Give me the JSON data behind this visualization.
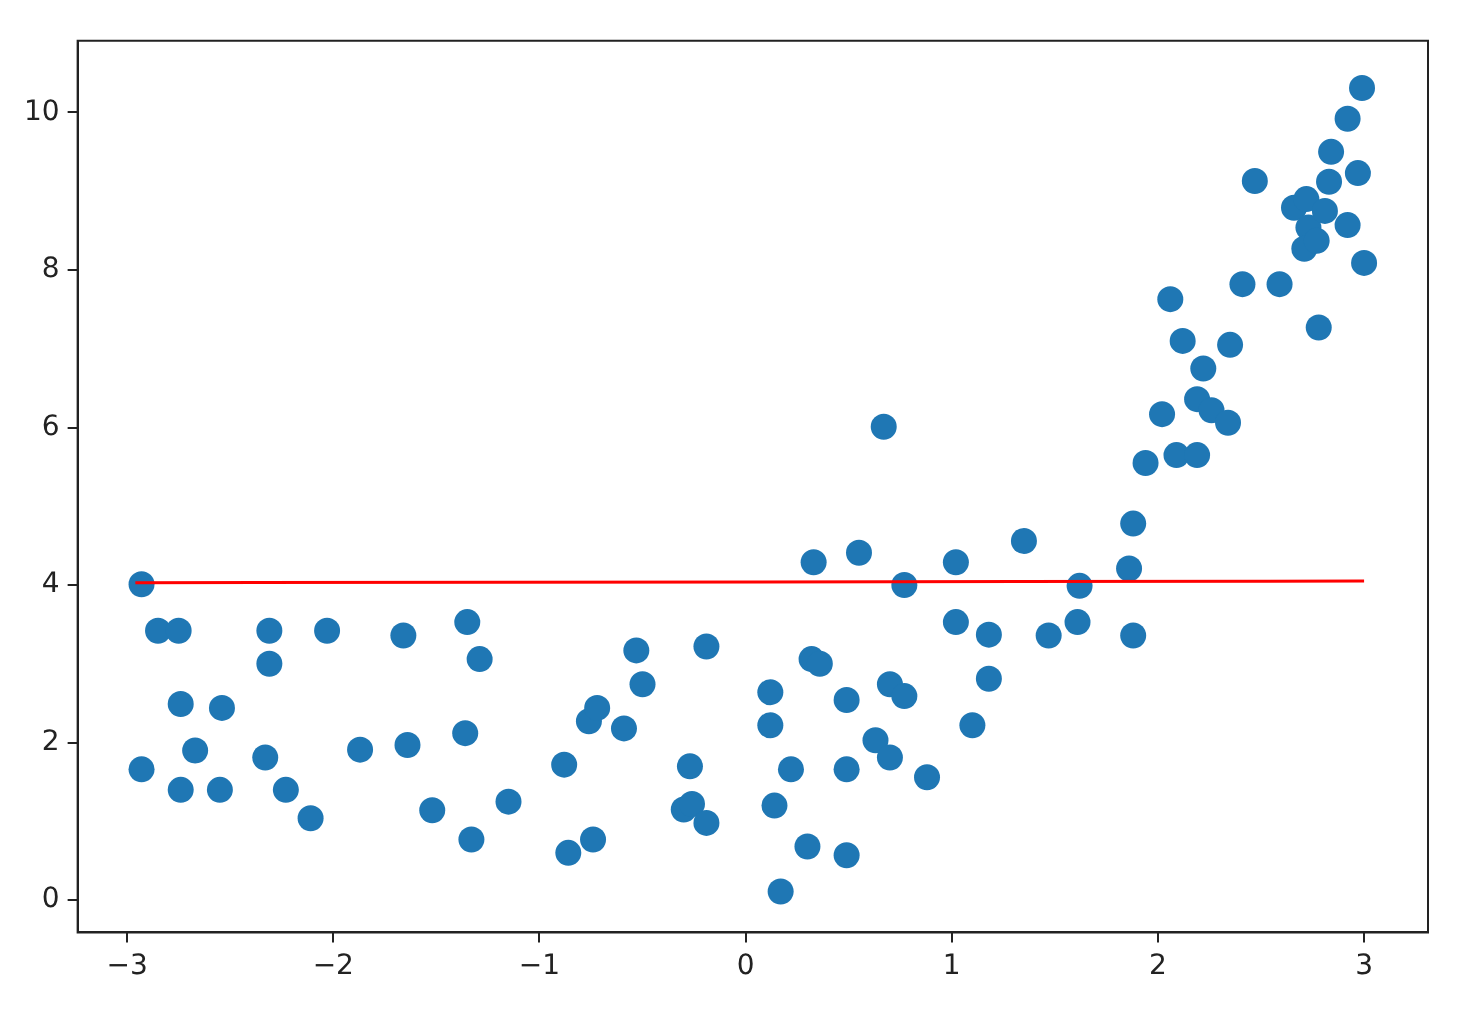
{
  "chart_data": {
    "type": "scatter",
    "xlim": [
      -3.24,
      3.31
    ],
    "ylim": [
      -0.41,
      10.91
    ],
    "xticks": [
      -3,
      -2,
      -1,
      0,
      1,
      2,
      3
    ],
    "yticks": [
      0,
      2,
      4,
      6,
      8,
      10
    ],
    "grid": false,
    "legend": false,
    "series": [
      {
        "type": "scatter",
        "color": "#1f77b4",
        "marker": "circle",
        "x": [
          -2.93,
          -2.93,
          -2.85,
          -2.75,
          -2.74,
          -2.74,
          -2.67,
          -2.55,
          -2.54,
          -2.33,
          -2.31,
          -2.31,
          -2.23,
          -2.11,
          -2.03,
          -1.87,
          -1.66,
          -1.64,
          -1.52,
          -1.36,
          -1.35,
          -1.33,
          -1.29,
          -1.15,
          -0.88,
          -0.86,
          -0.76,
          -0.72,
          -0.74,
          -0.59,
          -0.53,
          -0.5,
          -0.3,
          -0.27,
          -0.26,
          -0.19,
          -0.19,
          0.12,
          0.12,
          0.14,
          0.17,
          0.22,
          0.3,
          0.33,
          0.32,
          0.36,
          0.49,
          0.49,
          0.49,
          0.55,
          0.63,
          0.67,
          0.7,
          0.77,
          0.7,
          0.77,
          0.88,
          1.02,
          1.02,
          1.1,
          1.18,
          1.18,
          1.35,
          1.47,
          1.61,
          1.62,
          1.86,
          1.88,
          1.88,
          1.94,
          2.02,
          2.06,
          2.09,
          2.12,
          2.19,
          2.19,
          2.22,
          2.26,
          2.34,
          2.35,
          2.41,
          2.47,
          2.59,
          2.66,
          2.72,
          2.73,
          2.71,
          2.77,
          2.78,
          2.81,
          2.83,
          2.84,
          2.92,
          2.92,
          2.97,
          2.99,
          3.0
        ],
        "values": [
          4.01,
          1.66,
          3.42,
          3.42,
          2.49,
          1.4,
          1.9,
          1.4,
          2.44,
          1.81,
          3.42,
          3.0,
          1.4,
          1.04,
          3.42,
          1.91,
          3.36,
          1.97,
          1.14,
          2.12,
          3.53,
          0.77,
          3.06,
          1.25,
          1.72,
          0.6,
          2.27,
          2.44,
          0.77,
          2.18,
          3.17,
          2.74,
          1.15,
          1.7,
          1.22,
          0.98,
          3.22,
          2.64,
          2.22,
          1.2,
          0.11,
          1.66,
          0.68,
          4.29,
          3.06,
          3.0,
          2.54,
          1.66,
          0.57,
          4.41,
          2.03,
          6.01,
          2.74,
          2.59,
          1.81,
          4.0,
          1.56,
          4.29,
          3.53,
          2.22,
          3.37,
          2.81,
          4.56,
          3.36,
          3.53,
          3.99,
          4.21,
          4.78,
          3.36,
          5.55,
          6.17,
          7.63,
          5.65,
          7.1,
          5.65,
          6.36,
          6.75,
          6.22,
          6.06,
          7.05,
          7.82,
          9.13,
          7.82,
          8.79,
          8.9,
          8.54,
          8.27,
          8.37,
          7.27,
          8.75,
          9.12,
          9.5,
          9.92,
          8.57,
          9.23,
          10.31,
          8.09
        ]
      },
      {
        "type": "line",
        "color": "#ff0000",
        "marker": "none",
        "line_style": "solid",
        "x": [
          -2.96,
          3.0
        ],
        "values": [
          4.03,
          4.05
        ]
      }
    ]
  }
}
